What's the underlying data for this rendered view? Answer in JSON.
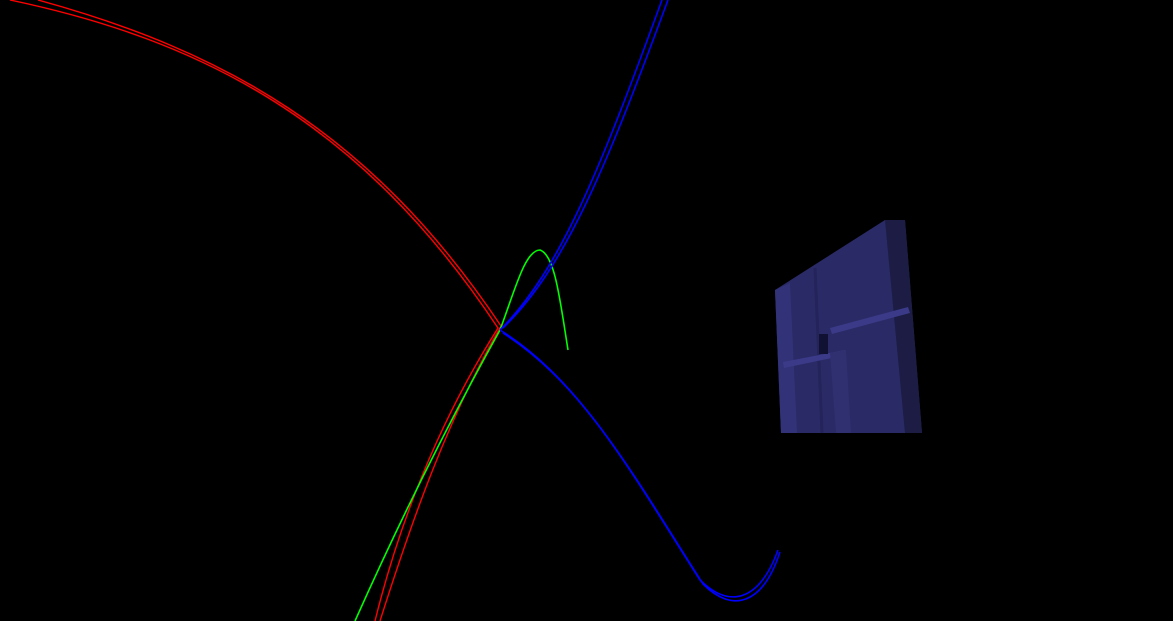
{
  "scene": {
    "background_color": "#000000",
    "curves": [
      {
        "name": "red-trajectory",
        "color": "#ff0000"
      },
      {
        "name": "green-trajectory",
        "color": "#00ff00"
      },
      {
        "name": "blue-trajectory",
        "color": "#0000ff"
      }
    ],
    "object": {
      "name": "blue-box",
      "front_color": "#2a2a66",
      "side_color": "#1c1c44",
      "highlight_color": "#3a3a88"
    }
  }
}
